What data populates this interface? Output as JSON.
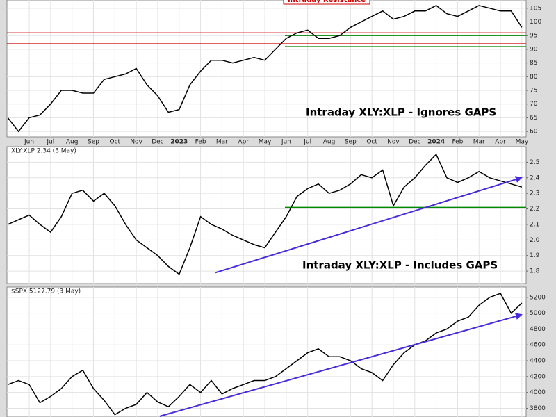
{
  "chart_data": [
    {
      "type": "line",
      "categories": [
        null,
        null,
        "Jun",
        null,
        "Jul",
        null,
        "Aug",
        null,
        "Sep",
        null,
        "Oct",
        null,
        "Nov",
        null,
        "Dec",
        null,
        "2023",
        null,
        "Feb",
        null,
        "Mar",
        null,
        "Apr",
        null,
        "May",
        null,
        "Jun",
        null,
        "Jul",
        null,
        "Aug",
        null,
        "Sep",
        null,
        "Oct",
        null,
        "Nov",
        null,
        "Dec",
        null,
        "2024",
        null,
        "Feb",
        null,
        "Mar",
        null,
        "Apr",
        null,
        "May"
      ],
      "series": [
        {
          "color": "#000000",
          "values": [
            65,
            60,
            65,
            66,
            70,
            75,
            75,
            74,
            74,
            79,
            80,
            81,
            83,
            77,
            73,
            67,
            68,
            77,
            82,
            86,
            86,
            85,
            86,
            87,
            86,
            90,
            94,
            96,
            97,
            94,
            94,
            95,
            98,
            100,
            102,
            104,
            101,
            102,
            104,
            104,
            106,
            103,
            102,
            104,
            106,
            105,
            104,
            104,
            98
          ]
        }
      ],
      "ylim": [
        58,
        108
      ],
      "yticks": [
        60,
        65,
        70,
        75,
        80,
        85,
        90,
        95,
        100,
        105
      ],
      "grid": true,
      "hlines": [
        {
          "value": 96,
          "color": "#cc0000"
        },
        {
          "value": 92,
          "color": "#cc0000"
        },
        {
          "value": 95,
          "color": "#008800"
        },
        {
          "value": 91,
          "color": "#008800"
        }
      ],
      "annotations": [
        "Intraday XLY:XLP - Ignores GAPS",
        "Intraday Resistance"
      ]
    },
    {
      "type": "line",
      "title": "XLY:XLP 2.34 (3 May)",
      "series": [
        {
          "color": "#000000",
          "values": [
            2.1,
            2.13,
            2.16,
            2.1,
            2.05,
            2.15,
            2.3,
            2.32,
            2.25,
            2.3,
            2.22,
            2.1,
            2.0,
            1.95,
            1.9,
            1.83,
            1.78,
            1.95,
            2.15,
            2.1,
            2.07,
            2.03,
            2.0,
            1.97,
            1.95,
            2.05,
            2.15,
            2.28,
            2.33,
            2.36,
            2.3,
            2.32,
            2.36,
            2.42,
            2.4,
            2.45,
            2.22,
            2.34,
            2.4,
            2.48,
            2.55,
            2.4,
            2.37,
            2.4,
            2.44,
            2.4,
            2.38,
            2.36,
            2.34
          ]
        }
      ],
      "ylim": [
        1.72,
        2.6
      ],
      "yticks": [
        1.8,
        1.9,
        {
          "value": 2,
          "label": "2.0"
        },
        2.1,
        2.2,
        2.3,
        2.4,
        2.5
      ],
      "grid": true,
      "hlines": [
        {
          "value": 2.21,
          "color": "#008800"
        }
      ],
      "trendline": {
        "values": [
          1.79,
          2.4
        ],
        "color": "#4b2bd9"
      },
      "annotations": [
        "Intraday XLY:XLP - Includes GAPS"
      ]
    },
    {
      "type": "line",
      "title": "$SPX 5127.79 (3 May)",
      "series": [
        {
          "color": "#000000",
          "values": [
            4100,
            4150,
            4100,
            3870,
            3950,
            4050,
            4200,
            4280,
            4050,
            3900,
            3720,
            3800,
            3850,
            4000,
            3880,
            3820,
            3950,
            4100,
            4000,
            4150,
            3980,
            4050,
            4100,
            4150,
            4150,
            4200,
            4300,
            4400,
            4500,
            4550,
            4450,
            4450,
            4400,
            4300,
            4250,
            4150,
            4350,
            4500,
            4600,
            4650,
            4750,
            4800,
            4900,
            4950,
            5100,
            5200,
            5250,
            5000,
            5128
          ]
        }
      ],
      "ylim": [
        3690,
        5330
      ],
      "yticks": [
        3800,
        4000,
        4200,
        4400,
        4600,
        4800,
        5000,
        5200
      ],
      "grid": true,
      "trendline": {
        "values": [
          3700,
          4980
        ],
        "color": "#4b2bd9"
      }
    }
  ]
}
